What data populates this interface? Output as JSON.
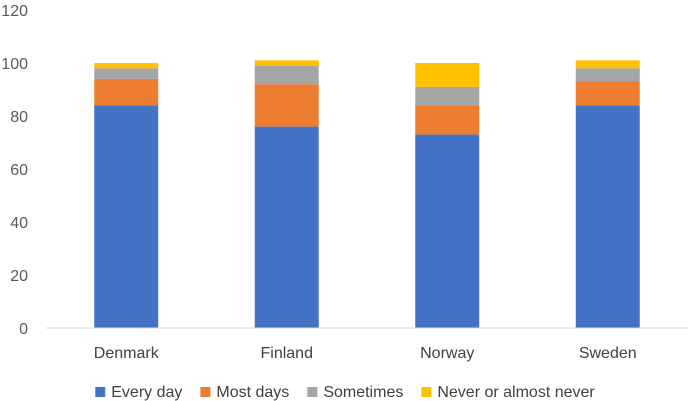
{
  "chart_data": {
    "type": "bar",
    "stacked": true,
    "categories": [
      "Denmark",
      "Finland",
      "Norway",
      "Sweden"
    ],
    "series": [
      {
        "name": "Every day",
        "color": "#4472C4",
        "values": [
          84,
          76,
          73,
          84
        ]
      },
      {
        "name": "Most days",
        "color": "#ED7D31",
        "values": [
          10,
          16,
          11,
          9
        ]
      },
      {
        "name": "Sometimes",
        "color": "#A5A5A5",
        "values": [
          4,
          7,
          7,
          5
        ]
      },
      {
        "name": "Never or almost never",
        "color": "#FFC000",
        "values": [
          2,
          2,
          9,
          3
        ]
      }
    ],
    "ylim": [
      0,
      120
    ],
    "yticks": [
      0,
      20,
      40,
      60,
      80,
      100,
      120
    ],
    "grid": false,
    "legend_position": "bottom"
  }
}
